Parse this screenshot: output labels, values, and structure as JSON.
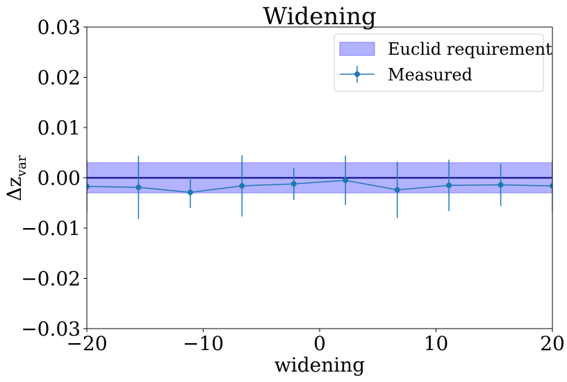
{
  "chart_data": {
    "type": "line",
    "title": "Widening",
    "xlabel": "widening",
    "ylabel": "Δz",
    "ylabel_sub": "var",
    "xlim": [
      -20,
      20
    ],
    "ylim": [
      -0.03,
      0.03
    ],
    "x_ticks": [
      -20,
      -10,
      0,
      10,
      20
    ],
    "x_tick_labels": [
      "−20",
      "−10",
      "0",
      "10",
      "20"
    ],
    "y_ticks": [
      0.03,
      0.02,
      0.01,
      0.0,
      -0.01,
      -0.02,
      -0.03
    ],
    "y_tick_labels": [
      "0.03",
      "0.02",
      "0.01",
      "0.00",
      "−0.01",
      "−0.02",
      "−0.03"
    ],
    "grid": false,
    "legend_position": "top-right",
    "reference_line": {
      "y": 0.0,
      "color": "#00008b"
    },
    "band": {
      "name": "Euclid requirement",
      "lower": -0.003,
      "upper": 0.003,
      "color": "#0000ff",
      "opacity": 0.3
    },
    "series": [
      {
        "name": "Measured",
        "color": "#1f77b4",
        "x": [
          -20,
          -15.56,
          -11.11,
          -6.67,
          -2.22,
          2.22,
          6.67,
          11.11,
          15.56,
          20
        ],
        "y": [
          -0.0017,
          -0.0019,
          -0.0029,
          -0.0016,
          -0.0012,
          -0.0005,
          -0.0024,
          -0.0015,
          -0.0014,
          -0.0016
        ],
        "yerr": [
          0.0052,
          0.0063,
          0.0031,
          0.0061,
          0.0032,
          0.0049,
          0.0056,
          0.0051,
          0.0042,
          0.0052
        ]
      }
    ]
  }
}
